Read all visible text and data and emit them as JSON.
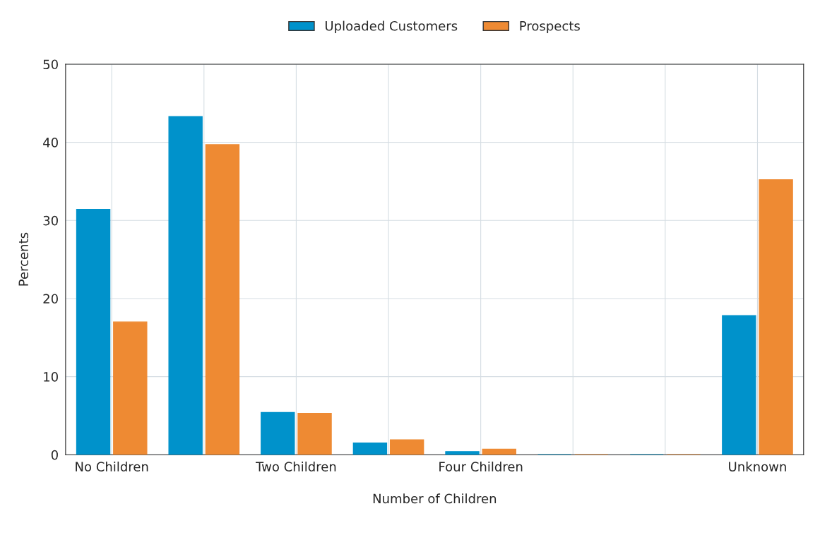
{
  "chart_data": {
    "type": "bar",
    "xlabel": "Number of Children",
    "ylabel": "Percents",
    "categories": [
      "No Children",
      null,
      "Two Children",
      null,
      "Four Children",
      null,
      null,
      "Unknown"
    ],
    "series": [
      {
        "name": "Uploaded Customers",
        "color": "#0092cb",
        "values": [
          31.4,
          43.3,
          5.4,
          1.5,
          0.4,
          0,
          0,
          17.8
        ]
      },
      {
        "name": "Prospects",
        "color": "#ee8a33",
        "values": [
          17.0,
          39.7,
          5.3,
          1.9,
          0.7,
          0,
          0,
          35.2
        ]
      }
    ],
    "ylim": [
      0,
      50
    ],
    "yticks": [
      0,
      10,
      20,
      30,
      40,
      50
    ],
    "grid": true,
    "legend": "top"
  }
}
